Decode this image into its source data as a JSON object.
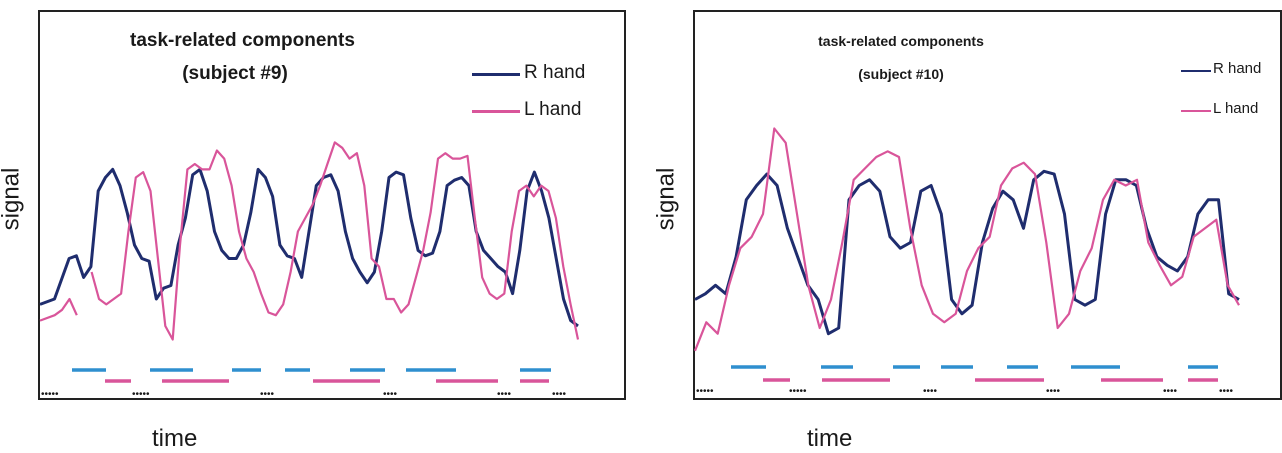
{
  "colors": {
    "r_hand": "#1f2d6e",
    "l_hand": "#d9559a",
    "task_r": "#2f8fcf",
    "task_l": "#d9559a",
    "rest": "#1a1a1a"
  },
  "chart_data": [
    {
      "type": "line",
      "title": "task-related components",
      "subtitle": "(subject #9)",
      "xlabel": "time",
      "ylabel": "signal",
      "grid": false,
      "legend_position": "top-right",
      "ylim": [
        0,
        1
      ],
      "series": [
        {
          "name": "R hand",
          "color": "#1f2d6e",
          "points": [
            [
              0,
              0.28
            ],
            [
              2,
              0.3
            ],
            [
              4,
              0.45
            ],
            [
              5,
              0.46
            ],
            [
              6,
              0.38
            ],
            [
              7,
              0.42
            ],
            [
              8,
              0.7
            ],
            [
              9,
              0.75
            ],
            [
              10,
              0.78
            ],
            [
              11,
              0.72
            ],
            [
              12,
              0.62
            ],
            [
              13,
              0.5
            ],
            [
              14,
              0.45
            ],
            [
              15,
              0.44
            ],
            [
              16,
              0.3
            ],
            [
              17,
              0.34
            ],
            [
              18,
              0.35
            ],
            [
              19,
              0.5
            ],
            [
              20,
              0.6
            ],
            [
              21,
              0.76
            ],
            [
              22,
              0.78
            ],
            [
              23,
              0.7
            ],
            [
              24,
              0.55
            ],
            [
              25,
              0.48
            ],
            [
              26,
              0.45
            ],
            [
              27,
              0.45
            ],
            [
              28,
              0.5
            ],
            [
              29,
              0.62
            ],
            [
              30,
              0.78
            ],
            [
              31,
              0.75
            ],
            [
              32,
              0.68
            ],
            [
              33,
              0.5
            ],
            [
              34,
              0.46
            ],
            [
              35,
              0.45
            ],
            [
              36,
              0.38
            ],
            [
              37,
              0.55
            ],
            [
              38,
              0.72
            ],
            [
              39,
              0.75
            ],
            [
              40,
              0.76
            ],
            [
              41,
              0.7
            ],
            [
              42,
              0.55
            ],
            [
              43,
              0.45
            ],
            [
              44,
              0.4
            ],
            [
              45,
              0.36
            ],
            [
              46,
              0.4
            ],
            [
              47,
              0.55
            ],
            [
              48,
              0.75
            ],
            [
              49,
              0.77
            ],
            [
              50,
              0.76
            ],
            [
              51,
              0.6
            ],
            [
              52,
              0.48
            ],
            [
              53,
              0.46
            ],
            [
              54,
              0.47
            ],
            [
              55,
              0.55
            ],
            [
              56,
              0.72
            ],
            [
              57,
              0.74
            ],
            [
              58,
              0.75
            ],
            [
              59,
              0.72
            ],
            [
              60,
              0.55
            ],
            [
              61,
              0.48
            ],
            [
              62,
              0.45
            ],
            [
              63,
              0.42
            ],
            [
              64,
              0.4
            ],
            [
              65,
              0.32
            ],
            [
              66,
              0.48
            ],
            [
              67,
              0.7
            ],
            [
              68,
              0.77
            ],
            [
              69,
              0.7
            ],
            [
              70,
              0.6
            ],
            [
              71,
              0.45
            ],
            [
              72,
              0.3
            ],
            [
              73,
              0.22
            ],
            [
              74,
              0.2
            ]
          ]
        },
        {
          "name": "L hand",
          "color": "#d9559a",
          "points": [
            [
              0,
              0.22
            ],
            [
              2,
              0.24
            ],
            [
              3,
              0.26
            ],
            [
              4,
              0.3
            ],
            [
              5,
              0.24
            ],
            [
              null,
              null
            ],
            [
              7,
              0.4
            ],
            [
              8,
              0.3
            ],
            [
              9,
              0.28
            ],
            [
              10,
              0.3
            ],
            [
              11,
              0.32
            ],
            [
              12,
              0.55
            ],
            [
              13,
              0.75
            ],
            [
              14,
              0.77
            ],
            [
              15,
              0.7
            ],
            [
              16,
              0.45
            ],
            [
              17,
              0.2
            ],
            [
              18,
              0.15
            ],
            [
              19,
              0.5
            ],
            [
              20,
              0.78
            ],
            [
              21,
              0.8
            ],
            [
              22,
              0.78
            ],
            [
              23,
              0.78
            ],
            [
              24,
              0.85
            ],
            [
              25,
              0.82
            ],
            [
              26,
              0.72
            ],
            [
              27,
              0.55
            ],
            [
              28,
              0.45
            ],
            [
              29,
              0.4
            ],
            [
              30,
              0.32
            ],
            [
              31,
              0.25
            ],
            [
              32,
              0.24
            ],
            [
              33,
              0.28
            ],
            [
              34,
              0.4
            ],
            [
              35,
              0.55
            ],
            [
              36,
              0.6
            ],
            [
              37,
              0.65
            ],
            [
              38,
              0.72
            ],
            [
              39,
              0.8
            ],
            [
              40,
              0.88
            ],
            [
              41,
              0.86
            ],
            [
              42,
              0.82
            ],
            [
              43,
              0.84
            ],
            [
              44,
              0.72
            ],
            [
              45,
              0.45
            ],
            [
              46,
              0.42
            ],
            [
              47,
              0.3
            ],
            [
              48,
              0.3
            ],
            [
              49,
              0.25
            ],
            [
              50,
              0.28
            ],
            [
              51,
              0.38
            ],
            [
              52,
              0.48
            ],
            [
              53,
              0.62
            ],
            [
              54,
              0.82
            ],
            [
              55,
              0.84
            ],
            [
              56,
              0.82
            ],
            [
              57,
              0.82
            ],
            [
              58,
              0.83
            ],
            [
              59,
              0.6
            ],
            [
              60,
              0.38
            ],
            [
              61,
              0.32
            ],
            [
              62,
              0.3
            ],
            [
              63,
              0.32
            ],
            [
              64,
              0.55
            ],
            [
              65,
              0.7
            ],
            [
              66,
              0.72
            ],
            [
              67,
              0.68
            ],
            [
              68,
              0.72
            ],
            [
              69,
              0.7
            ],
            [
              70,
              0.6
            ],
            [
              71,
              0.42
            ],
            [
              72,
              0.28
            ],
            [
              73,
              0.15
            ]
          ]
        }
      ],
      "bars_r": [
        [
          1,
          2,
          3,
          4
        ],
        [
          6,
          7,
          8,
          9
        ],
        [
          10,
          11,
          12,
          13
        ],
        [
          14,
          15,
          16,
          17
        ],
        [
          18,
          19,
          20,
          21
        ]
      ],
      "rest_marks": [
        "•••••",
        "•••••",
        "••••",
        "••••",
        "••••",
        "••••"
      ]
    },
    {
      "type": "line",
      "title": "task-related components",
      "subtitle": "(subject #10)",
      "xlabel": "time",
      "ylabel": "signal",
      "grid": false,
      "legend_position": "top-right",
      "ylim": [
        0,
        1
      ],
      "series": [
        {
          "name": "R hand",
          "color": "#1f2d6e",
          "points": [
            [
              0,
              0.3
            ],
            [
              1,
              0.32
            ],
            [
              2,
              0.35
            ],
            [
              3,
              0.32
            ],
            [
              4,
              0.45
            ],
            [
              5,
              0.65
            ],
            [
              6,
              0.7
            ],
            [
              7,
              0.74
            ],
            [
              8,
              0.7
            ],
            [
              9,
              0.55
            ],
            [
              10,
              0.45
            ],
            [
              11,
              0.35
            ],
            [
              12,
              0.3
            ],
            [
              13,
              0.18
            ],
            [
              14,
              0.2
            ],
            [
              15,
              0.65
            ],
            [
              16,
              0.7
            ],
            [
              17,
              0.72
            ],
            [
              18,
              0.68
            ],
            [
              19,
              0.52
            ],
            [
              20,
              0.48
            ],
            [
              21,
              0.5
            ],
            [
              22,
              0.68
            ],
            [
              23,
              0.7
            ],
            [
              24,
              0.6
            ],
            [
              25,
              0.3
            ],
            [
              26,
              0.25
            ],
            [
              27,
              0.28
            ],
            [
              28,
              0.5
            ],
            [
              29,
              0.62
            ],
            [
              30,
              0.68
            ],
            [
              31,
              0.65
            ],
            [
              32,
              0.55
            ],
            [
              33,
              0.72
            ],
            [
              34,
              0.75
            ],
            [
              35,
              0.74
            ],
            [
              36,
              0.6
            ],
            [
              37,
              0.3
            ],
            [
              38,
              0.28
            ],
            [
              39,
              0.3
            ],
            [
              40,
              0.6
            ],
            [
              41,
              0.72
            ],
            [
              42,
              0.72
            ],
            [
              43,
              0.7
            ],
            [
              44,
              0.55
            ],
            [
              45,
              0.45
            ],
            [
              46,
              0.42
            ],
            [
              47,
              0.4
            ],
            [
              48,
              0.45
            ],
            [
              49,
              0.6
            ],
            [
              50,
              0.65
            ],
            [
              51,
              0.65
            ],
            [
              52,
              0.32
            ],
            [
              53,
              0.3
            ]
          ]
        },
        {
          "name": "L hand",
          "color": "#d9559a",
          "points": [
            [
              0,
              0.12
            ],
            [
              1,
              0.22
            ],
            [
              2,
              0.18
            ],
            [
              3,
              0.35
            ],
            [
              4,
              0.48
            ],
            [
              5,
              0.52
            ],
            [
              6,
              0.6
            ],
            [
              7,
              0.9
            ],
            [
              8,
              0.85
            ],
            [
              9,
              0.6
            ],
            [
              10,
              0.35
            ],
            [
              11,
              0.2
            ],
            [
              12,
              0.3
            ],
            [
              13,
              0.5
            ],
            [
              14,
              0.72
            ],
            [
              15,
              0.76
            ],
            [
              16,
              0.8
            ],
            [
              17,
              0.82
            ],
            [
              18,
              0.8
            ],
            [
              19,
              0.55
            ],
            [
              20,
              0.35
            ],
            [
              21,
              0.25
            ],
            [
              22,
              0.22
            ],
            [
              23,
              0.25
            ],
            [
              24,
              0.4
            ],
            [
              25,
              0.48
            ],
            [
              26,
              0.52
            ],
            [
              27,
              0.7
            ],
            [
              28,
              0.76
            ],
            [
              29,
              0.78
            ],
            [
              30,
              0.74
            ],
            [
              31,
              0.5
            ],
            [
              32,
              0.2
            ],
            [
              33,
              0.25
            ],
            [
              34,
              0.4
            ],
            [
              35,
              0.48
            ],
            [
              36,
              0.65
            ],
            [
              37,
              0.72
            ],
            [
              38,
              0.7
            ],
            [
              39,
              0.72
            ],
            [
              40,
              0.5
            ],
            [
              41,
              0.42
            ],
            [
              42,
              0.35
            ],
            [
              43,
              0.38
            ],
            [
              44,
              0.52
            ],
            [
              45,
              0.55
            ],
            [
              46,
              0.58
            ],
            [
              47,
              0.35
            ],
            [
              48,
              0.28
            ]
          ]
        }
      ],
      "rest_marks": [
        "•••••",
        "•••••",
        "••••",
        "••••",
        "••••",
        "••••"
      ]
    }
  ],
  "legend": {
    "r_hand": "R hand",
    "l_hand": "L hand"
  }
}
